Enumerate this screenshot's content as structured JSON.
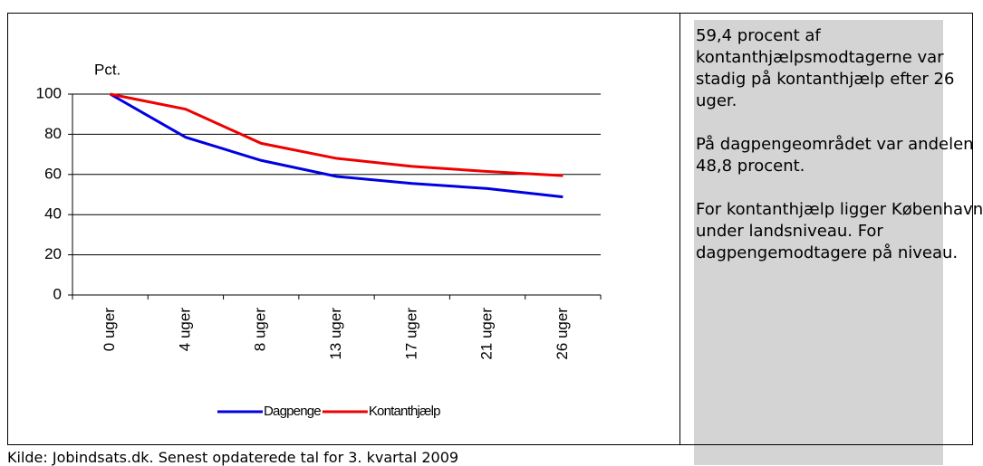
{
  "chart_data": {
    "type": "line",
    "y_label": "Pct.",
    "categories": [
      "0 uger",
      "4 uger",
      "8 uger",
      "13 uger",
      "17 uger",
      "21 uger",
      "26 uger"
    ],
    "series": [
      {
        "name": "Dagpenge",
        "color": "#0000e0",
        "values": [
          100,
          78.5,
          67,
          59,
          55.5,
          53,
          48.8
        ]
      },
      {
        "name": "Kontanthjælp",
        "color": "#ee0000",
        "values": [
          100,
          92.5,
          75.5,
          68,
          64,
          61.5,
          59.4
        ]
      }
    ],
    "ylim": [
      0,
      100
    ],
    "yticks": [
      0,
      20,
      40,
      60,
      80,
      100
    ],
    "grid": true,
    "legend": "bottom"
  },
  "side_panel": {
    "paragraphs": [
      "59,4 procent af kontanthjælpsmodtagerne var stadig på kontanthjælp efter 26 uger.",
      "På dagpengeområdet var andelen 48,8 procent.",
      "For kontanthjælp ligger København under landsniveau. For dagpengemodtagere på niveau."
    ]
  },
  "source": "Kilde: Jobindsats.dk. Senest opdaterede tal for 3. kvartal 2009"
}
